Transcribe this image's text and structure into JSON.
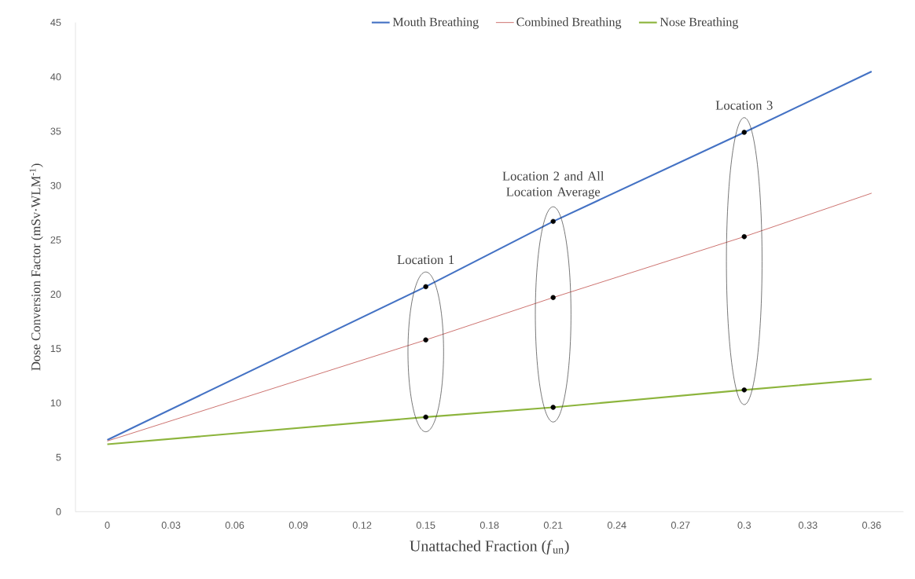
{
  "chart_data": {
    "type": "line",
    "xlabel": "Unattached Fraction (*f*$_{un}$)",
    "ylabel": "Dose Conversion Factor (mSv·WLM$^{-1}$)",
    "x": [
      0,
      0.15,
      0.21,
      0.3,
      0.36
    ],
    "series": [
      {
        "name": "Mouth Breathing",
        "color": "#4472c4",
        "values": [
          6.6,
          20.7,
          26.7,
          34.9,
          40.5
        ]
      },
      {
        "name": "Combined Breathing",
        "color": "#c0504d",
        "values": [
          6.5,
          15.8,
          19.7,
          25.3,
          29.3
        ]
      },
      {
        "name": "Nose Breathing",
        "color": "#8cb43c",
        "values": [
          6.2,
          8.7,
          9.6,
          11.2,
          12.2
        ]
      },
      {
        "type": "scatter",
        "color": "#000000",
        "x": [
          0.15,
          0.15,
          0.15,
          0.21,
          0.21,
          0.21,
          0.3,
          0.3,
          0.3
        ],
        "values": [
          20.7,
          15.8,
          8.7,
          26.7,
          19.7,
          9.6,
          34.9,
          25.3,
          11.2
        ]
      }
    ],
    "annotations": [
      {
        "text": "Location 1",
        "x": 0.15,
        "y": 20.7
      },
      {
        "text": "Location 2 and All Location Average",
        "x": 0.21,
        "y": 26.7
      },
      {
        "text": "Location 3",
        "x": 0.3,
        "y": 34.9
      }
    ],
    "xlim": [
      -0.015,
      0.375
    ],
    "ylim": [
      0,
      45
    ],
    "xticks": [
      0,
      0.03,
      0.06,
      0.09,
      0.12,
      0.15,
      0.18,
      0.21,
      0.24,
      0.27,
      0.3,
      0.33,
      0.36
    ],
    "yticks": [
      0,
      5,
      10,
      15,
      20,
      25,
      30,
      35,
      40,
      45
    ],
    "grid": false,
    "legend": "top",
    "marker": "none",
    "line_style": "solid"
  }
}
